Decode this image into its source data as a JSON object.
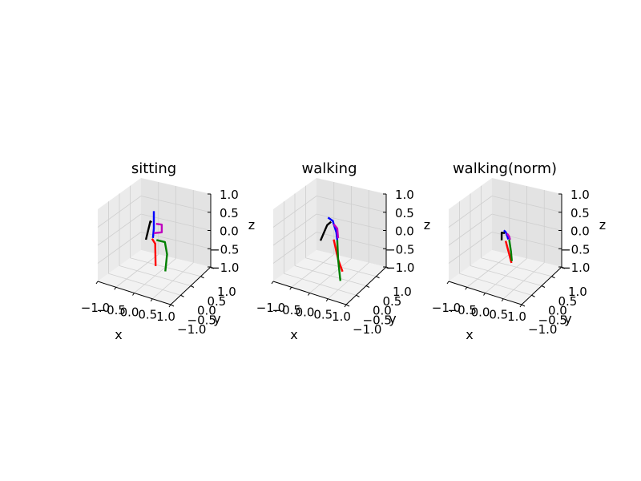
{
  "colors": {
    "pane_left": "#ebebeb",
    "pane_right": "#e3e3e3",
    "pane_floor": "#f2f2f2",
    "grid": "#cfcfcf",
    "head_spine": "#0000ff",
    "left_arm": "#000000",
    "right_arm": "#bf00bf",
    "left_leg": "#ff0000",
    "right_leg": "#008000"
  },
  "chart_data": [
    {
      "type": "line3d",
      "title": "sitting",
      "xlabel": "x",
      "ylabel": "y",
      "zlabel": "z",
      "xlim": [
        -1.0,
        1.0
      ],
      "ylim": [
        -1.0,
        1.0
      ],
      "zlim": [
        -1.0,
        1.0
      ],
      "xticks": [
        "−1.0",
        "−0.5",
        "0.0",
        "0.5",
        "1.0"
      ],
      "yticks": [
        "−1.0",
        "−0.5",
        "0.0",
        "0.5",
        "1.0"
      ],
      "zticks": [
        "1.0",
        "0.5",
        "0.0",
        "−0.5",
        "−1.0"
      ],
      "grid": true,
      "series": [
        {
          "role": "head_spine",
          "color": "head_spine",
          "x": [
            0.0,
            0.0,
            0.0,
            -0.02
          ],
          "y": [
            0.0,
            0.0,
            0.0,
            0.0
          ],
          "z": [
            0.72,
            0.48,
            0.27,
            0.02
          ]
        },
        {
          "role": "left_arm",
          "color": "left_arm",
          "x": [
            -0.05,
            -0.08,
            -0.18
          ],
          "y": [
            0.0,
            0.0,
            0.0
          ],
          "z": [
            0.42,
            0.44,
            -0.05
          ]
        },
        {
          "role": "right_arm",
          "color": "right_arm",
          "x": [
            0.05,
            0.18,
            0.18,
            0.0
          ],
          "y": [
            0.0,
            0.0,
            0.0,
            0.0
          ],
          "z": [
            0.4,
            0.4,
            0.2,
            0.15
          ]
        },
        {
          "role": "left_leg",
          "color": "left_leg",
          "x": [
            -0.04,
            0.03,
            0.04
          ],
          "y": [
            0.0,
            0.0,
            0.0
          ],
          "z": [
            0.0,
            -0.12,
            -0.7
          ]
        },
        {
          "role": "right_leg",
          "color": "right_leg",
          "x": [
            0.06,
            0.25,
            0.3,
            0.26
          ],
          "y": [
            0.0,
            0.0,
            0.0,
            0.0
          ],
          "z": [
            -0.02,
            -0.04,
            -0.35,
            -0.8
          ]
        }
      ]
    },
    {
      "type": "line3d",
      "title": "walking",
      "xlabel": "x",
      "ylabel": "y",
      "zlabel": "z",
      "xlim": [
        -1.0,
        1.0
      ],
      "ylim": [
        -1.0,
        1.0
      ],
      "zlim": [
        -1.0,
        1.0
      ],
      "xticks": [
        "−1.0",
        "−0.5",
        "0.0",
        "0.5",
        "1.0"
      ],
      "yticks": [
        "−1.0",
        "−0.5",
        "0.0",
        "0.5",
        "1.0"
      ],
      "zticks": [
        "1.0",
        "0.5",
        "0.0",
        "−0.5",
        "−1.0"
      ],
      "grid": true,
      "series": [
        {
          "role": "head_spine",
          "color": "head_spine",
          "x": [
            -0.03,
            0.08,
            0.1,
            0.16,
            0.18
          ],
          "y": [
            0.0,
            0.0,
            0.0,
            0.0,
            0.0
          ],
          "z": [
            0.55,
            0.48,
            0.4,
            0.2,
            0.0
          ]
        },
        {
          "role": "left_arm",
          "color": "left_arm",
          "x": [
            0.04,
            -0.05,
            -0.2
          ],
          "y": [
            0.0,
            0.0,
            0.0
          ],
          "z": [
            0.45,
            0.35,
            -0.08
          ]
        },
        {
          "role": "right_arm",
          "color": "right_arm",
          "x": [
            0.1,
            0.18,
            0.2
          ],
          "y": [
            0.0,
            0.0,
            0.0
          ],
          "z": [
            0.4,
            0.3,
            0.05
          ]
        },
        {
          "role": "left_leg",
          "color": "left_leg",
          "x": [
            0.1,
            0.2,
            0.3
          ],
          "y": [
            0.0,
            0.0,
            0.0
          ],
          "z": [
            0.0,
            -0.5,
            -0.8
          ]
        },
        {
          "role": "right_leg",
          "color": "right_leg",
          "x": [
            0.18,
            0.2,
            0.25
          ],
          "y": [
            0.0,
            0.0,
            0.0
          ],
          "z": [
            0.0,
            -0.5,
            -1.05
          ]
        }
      ]
    },
    {
      "type": "line3d",
      "title": "walking(norm)",
      "xlabel": "x",
      "ylabel": "y",
      "zlabel": "z",
      "xlim": [
        -1.0,
        1.0
      ],
      "ylim": [
        -1.0,
        1.0
      ],
      "zlim": [
        -1.0,
        1.0
      ],
      "xticks": [
        "−1.0",
        "−0.5",
        "0.0",
        "0.5",
        "1.0"
      ],
      "yticks": [
        "−1.0",
        "−0.5",
        "0.0",
        "0.5",
        "1.0"
      ],
      "zticks": [
        "1.0",
        "0.5",
        "0.0",
        "−0.5",
        "−1.0"
      ],
      "grid": true,
      "series": [
        {
          "role": "head_spine",
          "color": "head_spine",
          "x": [
            -0.02,
            0.02,
            0.05,
            0.08
          ],
          "y": [
            0.0,
            0.0,
            0.0,
            0.0
          ],
          "z": [
            0.22,
            0.18,
            0.1,
            0.0
          ]
        },
        {
          "role": "left_arm",
          "color": "left_arm",
          "x": [
            -0.07,
            -0.07,
            0.0
          ],
          "y": [
            0.0,
            0.0,
            0.0
          ],
          "z": [
            -0.05,
            0.15,
            0.15
          ]
        },
        {
          "role": "right_arm",
          "color": "right_arm",
          "x": [
            0.05,
            0.1,
            0.12
          ],
          "y": [
            0.0,
            0.0,
            0.0
          ],
          "z": [
            0.15,
            0.08,
            0.0
          ]
        },
        {
          "role": "left_leg",
          "color": "left_leg",
          "x": [
            0.02,
            0.1,
            0.15
          ],
          "y": [
            0.0,
            0.0,
            0.0
          ],
          "z": [
            -0.05,
            -0.38,
            -0.6
          ]
        },
        {
          "role": "right_leg",
          "color": "right_leg",
          "x": [
            0.1,
            0.14,
            0.16
          ],
          "y": [
            0.0,
            0.0,
            0.0
          ],
          "z": [
            0.0,
            -0.3,
            -0.55
          ]
        }
      ]
    }
  ]
}
